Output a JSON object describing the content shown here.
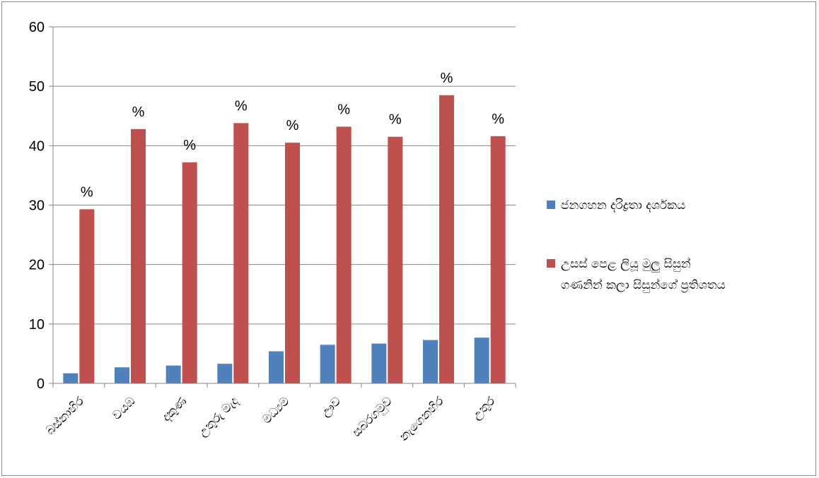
{
  "chart_data": {
    "type": "bar",
    "categories": [
      "බස්නාහිර",
      "වයඹ",
      "දකුණ",
      "උතුරු මැද",
      "මධ්‍යම",
      "ඌව",
      "සබරගමුව",
      "නැගෙනහිර",
      "උතුර"
    ],
    "series": [
      {
        "name": "ජනගහන දරිද්‍රතා දර්ශකය",
        "color": "#4F81BD",
        "values": [
          1.7,
          2.7,
          3.0,
          3.3,
          5.4,
          6.5,
          6.7,
          7.3,
          7.7
        ]
      },
      {
        "name": "උසස් පෙළ ලියූ මුලු සිසුන් ගණනින් කලා සිසුන්ගේ ප්‍රතිශතය",
        "name_lines": [
          "උසස් පෙළ ලියූ මුලු සිසුන්",
          "ගණනින් කලා සිසුන්ගේ ප්‍රතිශතය"
        ],
        "color": "#C0504D",
        "values": [
          29.3,
          42.8,
          37.2,
          43.8,
          40.5,
          43.2,
          41.5,
          48.5,
          41.6
        ],
        "data_label": "%"
      }
    ],
    "ylim": [
      0,
      60
    ],
    "yticks": [
      "0",
      "10",
      "20",
      "30",
      "40",
      "50",
      "60"
    ],
    "grid": true,
    "legend_position": "right"
  }
}
